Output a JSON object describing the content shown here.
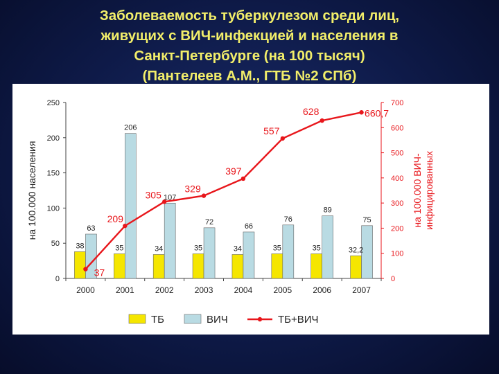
{
  "slide": {
    "title_lines": [
      "Заболеваемость туберкулезом среди лиц,",
      "живущих с ВИЧ-инфекцией и населения в",
      "Санкт-Петербурге (на 100 тысяч)",
      "(Пантелеев А.М., ГТБ №2 СПб)"
    ]
  },
  "chart_data": {
    "type": "bar",
    "title": "",
    "categories": [
      "2000",
      "2001",
      "2002",
      "2003",
      "2004",
      "2005",
      "2006",
      "2007"
    ],
    "ylabel": "на 100.000 населения",
    "y2label_lines": [
      "на 100.000 ВИЧ-",
      "инфицированных"
    ],
    "ylim": [
      0,
      250
    ],
    "yticks": [
      0,
      50,
      100,
      150,
      200,
      250
    ],
    "y2lim": [
      0,
      700
    ],
    "y2ticks": [
      0,
      100,
      200,
      300,
      400,
      500,
      600,
      700
    ],
    "grid": false,
    "legend_position": "bottom",
    "series": [
      {
        "name": "ТБ",
        "kind": "bar",
        "axis": "left",
        "color": "#f5e600",
        "values": [
          38,
          35,
          34,
          35,
          34,
          35,
          35,
          32.2
        ],
        "labels": [
          "38",
          "35",
          "34",
          "35",
          "34",
          "35",
          "35",
          "32,2"
        ]
      },
      {
        "name": "ВИЧ",
        "kind": "bar",
        "axis": "left",
        "color": "#b9dbe3",
        "values": [
          63,
          206,
          107,
          72,
          66,
          76,
          89,
          75
        ],
        "labels": [
          "63",
          "206",
          "107",
          "72",
          "66",
          "76",
          "89",
          "75"
        ]
      },
      {
        "name": "ТБ+ВИЧ",
        "kind": "line",
        "axis": "right",
        "color": "#e8161b",
        "values": [
          37,
          209,
          305,
          329,
          397,
          557,
          628,
          660.7
        ],
        "labels": [
          "37",
          "209",
          "305",
          "329",
          "397",
          "557",
          "628",
          "660,7"
        ]
      }
    ]
  }
}
